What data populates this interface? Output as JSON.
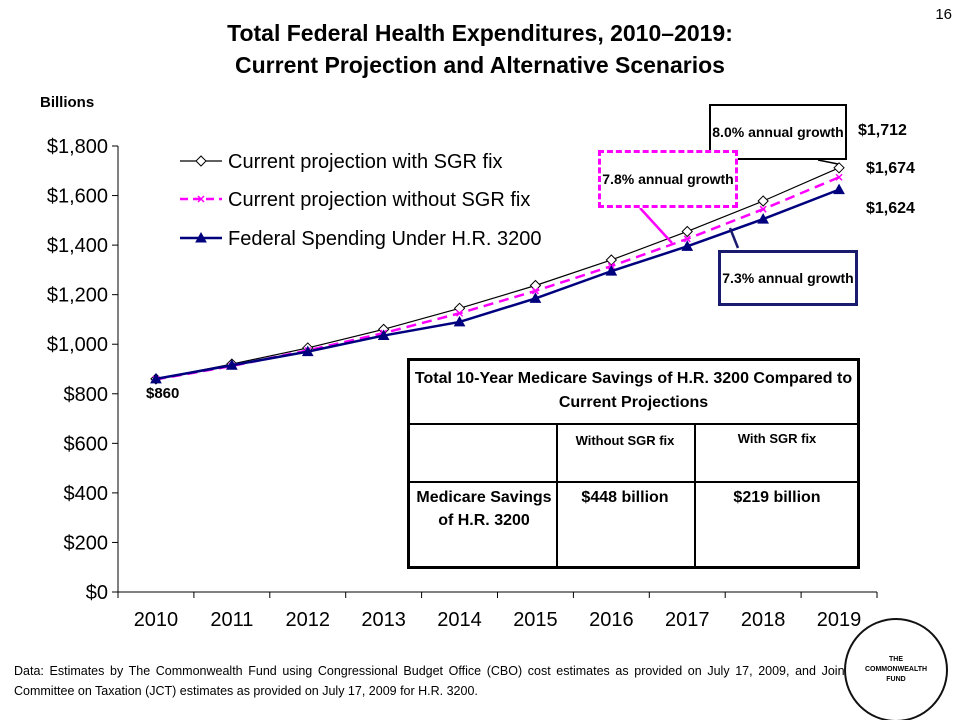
{
  "slide_number": "16",
  "title_line1": "Total Federal Health Expenditures, 2010–2019:",
  "title_line2": "Current Projection and Alternative Scenarios",
  "colors": {
    "with_sgr_fix": "#000000",
    "without_sgr_fix": "#ff00ff",
    "hr3200": "#00007f",
    "callout_73_border": "#1a1a6e"
  },
  "chart_data": {
    "type": "line",
    "title": "Total Federal Health Expenditures, 2010–2019: Current Projection and Alternative Scenarios",
    "ylabel": "Billions",
    "xlabel": "",
    "categories": [
      "2010",
      "2011",
      "2012",
      "2013",
      "2014",
      "2015",
      "2016",
      "2017",
      "2018",
      "2019"
    ],
    "ylim": [
      0,
      1800
    ],
    "y_ticks": [
      0,
      200,
      400,
      600,
      800,
      1000,
      1200,
      1400,
      1600,
      1800
    ],
    "y_tick_labels": [
      "$0",
      "$200",
      "$400",
      "$600",
      "$800",
      "$1,000",
      "$1,200",
      "$1,400",
      "$1,600",
      "$1,800"
    ],
    "grid": false,
    "legend_position": "top-left",
    "series": [
      {
        "name": "Current projection with SGR fix",
        "color": "#000000",
        "style": "solid",
        "marker": "diamond-open",
        "values": [
          860,
          920,
          985,
          1060,
          1145,
          1237,
          1340,
          1455,
          1578,
          1712
        ]
      },
      {
        "name": "Current projection without SGR fix",
        "color": "#ff00ff",
        "style": "dashed",
        "marker": "x",
        "values": [
          858,
          912,
          975,
          1045,
          1125,
          1215,
          1315,
          1425,
          1545,
          1674
        ]
      },
      {
        "name": "Federal Spending Under H.R. 3200",
        "color": "#00007f",
        "style": "solid",
        "marker": "triangle",
        "values": [
          860,
          915,
          970,
          1035,
          1090,
          1185,
          1295,
          1395,
          1505,
          1624
        ]
      }
    ],
    "annotations": {
      "start_value": "$860",
      "end_values": [
        "$1,712",
        "$1,674",
        "$1,624"
      ],
      "callout_80": "8.0% annual growth",
      "callout_78": "7.8% annual growth",
      "callout_73": "7.3% annual growth"
    }
  },
  "savings_table": {
    "title": "Total 10-Year Medicare Savings of H.R. 3200 Compared to Current Projections",
    "col_headers": [
      "Without SGR fix",
      "With SGR fix"
    ],
    "row_label": "Medicare Savings of H.R. 3200",
    "values": [
      "$448 billion",
      "$219 billion"
    ]
  },
  "source_note": "Data: Estimates by The Commonwealth Fund using Congressional Budget Office (CBO) cost estimates as provided on July 17, 2009, and Joint Committee on Taxation (JCT) estimates as provided on July 17, 2009 for H.R. 3200.",
  "logo_text": "THE COMMONWEALTH FUND"
}
